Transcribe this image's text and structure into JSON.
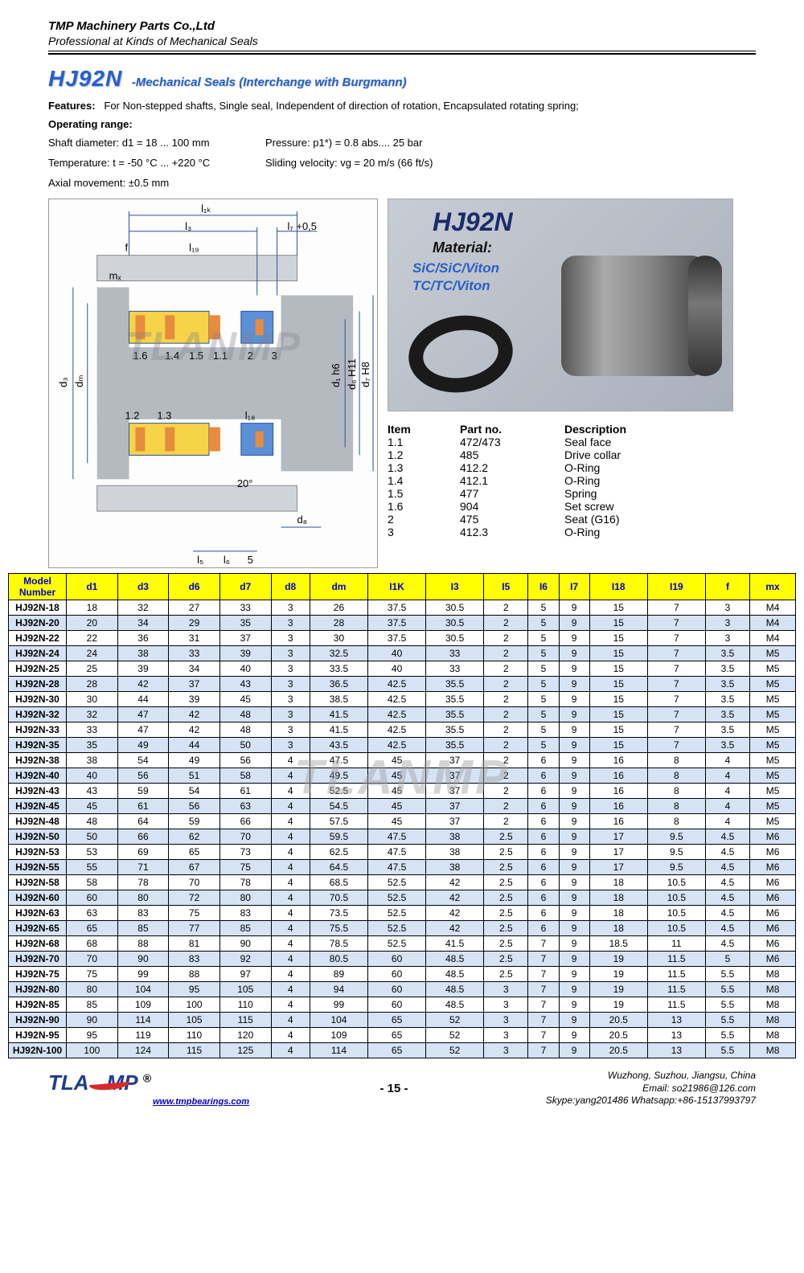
{
  "header": {
    "company": "TMP Machinery Parts Co.,Ltd",
    "tagline": "Professional at Kinds of Mechanical Seals"
  },
  "title": {
    "model": "HJ92N",
    "subtitle": "-Mechanical Seals (Interchange with Burgmann)"
  },
  "features": {
    "label": "Features:",
    "text": "For Non-stepped shafts, Single seal, Independent of direction of rotation, Encapsulated rotating spring;"
  },
  "operating": {
    "label": "Operating range:",
    "shaft": "Shaft diameter: d1 = 18 ... 100 mm",
    "pressure": "Pressure: p1*) = 0.8 abs.... 25 bar",
    "temp": "Temperature: t = -50 °C ... +220 °C",
    "velocity": "Sliding velocity: vg = 20 m/s (66 ft/s)",
    "axial": "Axial movement: ±0.5 mm"
  },
  "watermark": "TLANMP",
  "diagram": {
    "top_labels": [
      "l1k",
      "l3",
      "l7 +0,5",
      "f",
      "l19"
    ],
    "left_labels": [
      "d3",
      "dm",
      "mx"
    ],
    "right_labels": [
      "d1 h6",
      "d6 H11",
      "d7 H8"
    ],
    "bottom_labels": [
      "l5",
      "l6",
      "5",
      "d8",
      "l18",
      "20°"
    ],
    "callouts": [
      "1.6",
      "1.4",
      "1.5",
      "1.1",
      "2",
      "3",
      "1.2",
      "1.3"
    ],
    "colors": {
      "body": "#9aa0a6",
      "yellow": "#f5d547",
      "blue": "#5b8fd6",
      "orange_hatch": "#e88b3e",
      "line": "#2a4fa0"
    }
  },
  "photo": {
    "title": "HJ92N",
    "material_label": "Material:",
    "mat1": "SiC/SiC/Viton",
    "mat2": "TC/TC/Viton"
  },
  "parts": {
    "columns": [
      "Item",
      "Part no.",
      "Description"
    ],
    "rows": [
      [
        "1.1",
        "472/473",
        "Seal face"
      ],
      [
        "1.2",
        "485",
        "Drive collar"
      ],
      [
        "1.3",
        "412.2",
        "O-Ring"
      ],
      [
        "1.4",
        "412.1",
        "O-Ring"
      ],
      [
        "1.5",
        "477",
        "Spring"
      ],
      [
        "1.6",
        "904",
        "Set screw"
      ],
      [
        "2",
        "475",
        "Seat (G16)"
      ],
      [
        "3",
        "412.3",
        "O-Ring"
      ]
    ]
  },
  "dims": {
    "columns": [
      "Model Number",
      "d1",
      "d3",
      "d6",
      "d7",
      "d8",
      "dm",
      "I1K",
      "I3",
      "I5",
      "I6",
      "I7",
      "I18",
      "I19",
      "f",
      "mx"
    ],
    "rows": [
      [
        "HJ92N-18",
        "18",
        "32",
        "27",
        "33",
        "3",
        "26",
        "37.5",
        "30.5",
        "2",
        "5",
        "9",
        "15",
        "7",
        "3",
        "M4"
      ],
      [
        "HJ92N-20",
        "20",
        "34",
        "29",
        "35",
        "3",
        "28",
        "37.5",
        "30.5",
        "2",
        "5",
        "9",
        "15",
        "7",
        "3",
        "M4"
      ],
      [
        "HJ92N-22",
        "22",
        "36",
        "31",
        "37",
        "3",
        "30",
        "37.5",
        "30.5",
        "2",
        "5",
        "9",
        "15",
        "7",
        "3",
        "M4"
      ],
      [
        "HJ92N-24",
        "24",
        "38",
        "33",
        "39",
        "3",
        "32.5",
        "40",
        "33",
        "2",
        "5",
        "9",
        "15",
        "7",
        "3.5",
        "M5"
      ],
      [
        "HJ92N-25",
        "25",
        "39",
        "34",
        "40",
        "3",
        "33.5",
        "40",
        "33",
        "2",
        "5",
        "9",
        "15",
        "7",
        "3.5",
        "M5"
      ],
      [
        "HJ92N-28",
        "28",
        "42",
        "37",
        "43",
        "3",
        "36.5",
        "42.5",
        "35.5",
        "2",
        "5",
        "9",
        "15",
        "7",
        "3.5",
        "M5"
      ],
      [
        "HJ92N-30",
        "30",
        "44",
        "39",
        "45",
        "3",
        "38.5",
        "42.5",
        "35.5",
        "2",
        "5",
        "9",
        "15",
        "7",
        "3.5",
        "M5"
      ],
      [
        "HJ92N-32",
        "32",
        "47",
        "42",
        "48",
        "3",
        "41.5",
        "42.5",
        "35.5",
        "2",
        "5",
        "9",
        "15",
        "7",
        "3.5",
        "M5"
      ],
      [
        "HJ92N-33",
        "33",
        "47",
        "42",
        "48",
        "3",
        "41.5",
        "42.5",
        "35.5",
        "2",
        "5",
        "9",
        "15",
        "7",
        "3.5",
        "M5"
      ],
      [
        "HJ92N-35",
        "35",
        "49",
        "44",
        "50",
        "3",
        "43.5",
        "42.5",
        "35.5",
        "2",
        "5",
        "9",
        "15",
        "7",
        "3.5",
        "M5"
      ],
      [
        "HJ92N-38",
        "38",
        "54",
        "49",
        "56",
        "4",
        "47.5",
        "45",
        "37",
        "2",
        "6",
        "9",
        "16",
        "8",
        "4",
        "M5"
      ],
      [
        "HJ92N-40",
        "40",
        "56",
        "51",
        "58",
        "4",
        "49.5",
        "45",
        "37",
        "2",
        "6",
        "9",
        "16",
        "8",
        "4",
        "M5"
      ],
      [
        "HJ92N-43",
        "43",
        "59",
        "54",
        "61",
        "4",
        "52.5",
        "45",
        "37",
        "2",
        "6",
        "9",
        "16",
        "8",
        "4",
        "M5"
      ],
      [
        "HJ92N-45",
        "45",
        "61",
        "56",
        "63",
        "4",
        "54.5",
        "45",
        "37",
        "2",
        "6",
        "9",
        "16",
        "8",
        "4",
        "M5"
      ],
      [
        "HJ92N-48",
        "48",
        "64",
        "59",
        "66",
        "4",
        "57.5",
        "45",
        "37",
        "2",
        "6",
        "9",
        "16",
        "8",
        "4",
        "M5"
      ],
      [
        "HJ92N-50",
        "50",
        "66",
        "62",
        "70",
        "4",
        "59.5",
        "47.5",
        "38",
        "2.5",
        "6",
        "9",
        "17",
        "9.5",
        "4.5",
        "M6"
      ],
      [
        "HJ92N-53",
        "53",
        "69",
        "65",
        "73",
        "4",
        "62.5",
        "47.5",
        "38",
        "2.5",
        "6",
        "9",
        "17",
        "9.5",
        "4.5",
        "M6"
      ],
      [
        "HJ92N-55",
        "55",
        "71",
        "67",
        "75",
        "4",
        "64.5",
        "47.5",
        "38",
        "2.5",
        "6",
        "9",
        "17",
        "9.5",
        "4.5",
        "M6"
      ],
      [
        "HJ92N-58",
        "58",
        "78",
        "70",
        "78",
        "4",
        "68.5",
        "52.5",
        "42",
        "2.5",
        "6",
        "9",
        "18",
        "10.5",
        "4.5",
        "M6"
      ],
      [
        "HJ92N-60",
        "60",
        "80",
        "72",
        "80",
        "4",
        "70.5",
        "52.5",
        "42",
        "2.5",
        "6",
        "9",
        "18",
        "10.5",
        "4.5",
        "M6"
      ],
      [
        "HJ92N-63",
        "63",
        "83",
        "75",
        "83",
        "4",
        "73.5",
        "52.5",
        "42",
        "2.5",
        "6",
        "9",
        "18",
        "10.5",
        "4.5",
        "M6"
      ],
      [
        "HJ92N-65",
        "65",
        "85",
        "77",
        "85",
        "4",
        "75.5",
        "52.5",
        "42",
        "2.5",
        "6",
        "9",
        "18",
        "10.5",
        "4.5",
        "M6"
      ],
      [
        "HJ92N-68",
        "68",
        "88",
        "81",
        "90",
        "4",
        "78.5",
        "52.5",
        "41.5",
        "2.5",
        "7",
        "9",
        "18.5",
        "11",
        "4.5",
        "M6"
      ],
      [
        "HJ92N-70",
        "70",
        "90",
        "83",
        "92",
        "4",
        "80.5",
        "60",
        "48.5",
        "2.5",
        "7",
        "9",
        "19",
        "11.5",
        "5",
        "M6"
      ],
      [
        "HJ92N-75",
        "75",
        "99",
        "88",
        "97",
        "4",
        "89",
        "60",
        "48.5",
        "2.5",
        "7",
        "9",
        "19",
        "11.5",
        "5.5",
        "M8"
      ],
      [
        "HJ92N-80",
        "80",
        "104",
        "95",
        "105",
        "4",
        "94",
        "60",
        "48.5",
        "3",
        "7",
        "9",
        "19",
        "11.5",
        "5.5",
        "M8"
      ],
      [
        "HJ92N-85",
        "85",
        "109",
        "100",
        "110",
        "4",
        "99",
        "60",
        "48.5",
        "3",
        "7",
        "9",
        "19",
        "11.5",
        "5.5",
        "M8"
      ],
      [
        "HJ92N-90",
        "90",
        "114",
        "105",
        "115",
        "4",
        "104",
        "65",
        "52",
        "3",
        "7",
        "9",
        "20.5",
        "13",
        "5.5",
        "M8"
      ],
      [
        "HJ92N-95",
        "95",
        "119",
        "110",
        "120",
        "4",
        "109",
        "65",
        "52",
        "3",
        "7",
        "9",
        "20.5",
        "13",
        "5.5",
        "M8"
      ],
      [
        "HJ92N-100",
        "100",
        "124",
        "115",
        "125",
        "4",
        "114",
        "65",
        "52",
        "3",
        "7",
        "9",
        "20.5",
        "13",
        "5.5",
        "M8"
      ]
    ],
    "header_bg": "#ffff00",
    "header_fg": "#0000cc",
    "alt_row_bg": "#d5e3f5"
  },
  "footer": {
    "logo_text": "TLA   MP",
    "registered": "®",
    "url": "www.tmpbearings.com",
    "page": "- 15 -",
    "addr": "Wuzhong, Suzhou, Jiangsu, China",
    "email": "Email: so21986@126.com",
    "contact": "Skype:yang201486   Whatsapp:+86-15137993797"
  }
}
